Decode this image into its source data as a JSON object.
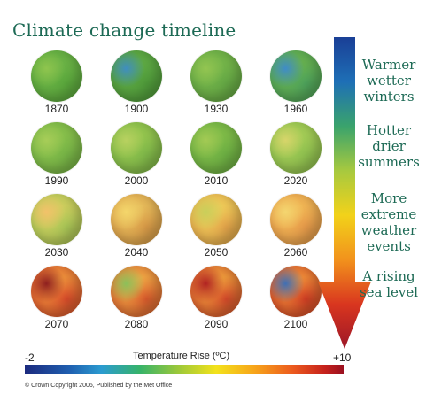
{
  "title": "Climate change timeline",
  "globes": [
    {
      "year": "1870",
      "palette": [
        "#6fb548",
        "#5aa83c",
        "#8fc54e"
      ]
    },
    {
      "year": "1900",
      "palette": [
        "#62ac46",
        "#4f9b3a",
        "#3f8ec0"
      ]
    },
    {
      "year": "1930",
      "palette": [
        "#78b74a",
        "#65a945",
        "#93c551"
      ]
    },
    {
      "year": "1960",
      "palette": [
        "#6db24a",
        "#4ea45d",
        "#3f8cc8"
      ]
    },
    {
      "year": "1990",
      "palette": [
        "#8cc24c",
        "#76b446",
        "#a7cd58"
      ]
    },
    {
      "year": "2000",
      "palette": [
        "#9ac84f",
        "#7fb849",
        "#b8d160"
      ]
    },
    {
      "year": "2010",
      "palette": [
        "#84be49",
        "#6caf43",
        "#a3ca54"
      ]
    },
    {
      "year": "2020",
      "palette": [
        "#a9ce57",
        "#8fc14f",
        "#d7d56a"
      ]
    },
    {
      "year": "2030",
      "palette": [
        "#d7cf5f",
        "#a8c656",
        "#f2c26a"
      ]
    },
    {
      "year": "2040",
      "palette": [
        "#e8c35f",
        "#d99a47",
        "#f4d66b"
      ]
    },
    {
      "year": "2050",
      "palette": [
        "#f0d45c",
        "#e4a44a",
        "#c9cf5a"
      ]
    },
    {
      "year": "2060",
      "palette": [
        "#f2bd57",
        "#e79a4a",
        "#f4d670"
      ]
    },
    {
      "year": "2070",
      "palette": [
        "#f0a23f",
        "#d84b2a",
        "#8f1f1f"
      ]
    },
    {
      "year": "2080",
      "palette": [
        "#f2b94a",
        "#d95a2c",
        "#8cc05a"
      ]
    },
    {
      "year": "2090",
      "palette": [
        "#f1b03f",
        "#d54a2a",
        "#b12322"
      ]
    },
    {
      "year": "2100",
      "palette": [
        "#f39f3d",
        "#d13e24",
        "#3f6fb5"
      ]
    }
  ],
  "side_labels": [
    [
      "Warmer",
      "wetter",
      "winters"
    ],
    [
      "Hotter",
      "drier",
      "summers"
    ],
    [
      "More",
      "extreme",
      "weather",
      "events"
    ],
    [
      "A rising",
      "sea level"
    ]
  ],
  "arrow_colors": [
    "#1a3f96",
    "#1e6fb6",
    "#3aa36c",
    "#a7c93f",
    "#f2d21a",
    "#f2921c",
    "#d9361f",
    "#9c1627"
  ],
  "scale": {
    "min": "-2",
    "max": "+10",
    "title": "Temperature Rise (ºC)"
  },
  "copyright": "© Crown Copyright 2006, Published by the Met Office"
}
